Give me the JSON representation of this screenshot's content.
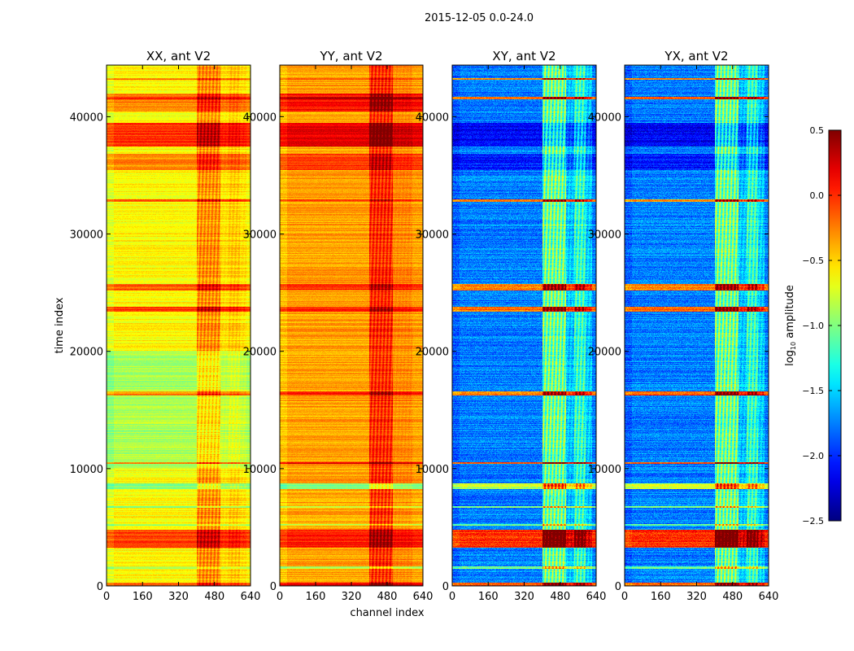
{
  "chart_data": {
    "type": "heatmap",
    "title": "2015-12-05 0.0-24.0",
    "xlabel": "channel index",
    "ylabel": "time index",
    "colormap": "jet",
    "xlim": [
      0,
      640
    ],
    "ylim": [
      0,
      44400
    ],
    "xticks": [
      "0",
      "160",
      "320",
      "480",
      "640"
    ],
    "xtick_values": [
      0,
      160,
      320,
      480,
      640
    ],
    "yticks": [
      "0",
      "10000",
      "20000",
      "30000",
      "40000"
    ],
    "ytick_values": [
      0,
      10000,
      20000,
      30000,
      40000
    ],
    "panels": [
      {
        "title": "XX, ant V2",
        "base": -0.62
      },
      {
        "title": "YY, ant V2",
        "base": -0.35
      },
      {
        "title": "XY, ant V2",
        "base": -1.75
      },
      {
        "title": "YX, ant V2",
        "base": -1.75
      }
    ],
    "channel_bands": [
      {
        "c0": 400,
        "c1": 505,
        "delta": [
          0.45,
          0.5,
          1.0,
          1.0
        ]
      },
      {
        "c0": 505,
        "c1": 540,
        "delta": [
          0.1,
          0.1,
          0.3,
          0.3
        ]
      },
      {
        "c0": 540,
        "c1": 590,
        "delta": [
          0.2,
          0.1,
          0.75,
          0.75
        ]
      },
      {
        "c0": 590,
        "c1": 620,
        "delta": [
          0.1,
          0.0,
          0.35,
          0.35
        ]
      }
    ],
    "time_bands": [
      {
        "t0": 0,
        "t1": 300,
        "delta": [
          0.5,
          0.5,
          1.6,
          1.6
        ]
      },
      {
        "t0": 1500,
        "t1": 1700,
        "delta": [
          -0.3,
          -0.5,
          0.7,
          0.7
        ]
      },
      {
        "t0": 3300,
        "t1": 4800,
        "delta": [
          0.55,
          0.4,
          1.75,
          1.75
        ]
      },
      {
        "t0": 5200,
        "t1": 5300,
        "delta": [
          -0.3,
          -0.4,
          0.7,
          0.7
        ]
      },
      {
        "t0": 6700,
        "t1": 6800,
        "delta": [
          -0.4,
          -0.5,
          0.8,
          0.8
        ]
      },
      {
        "t0": 8300,
        "t1": 8800,
        "delta": [
          -0.4,
          -0.7,
          0.95,
          0.95
        ]
      },
      {
        "t0": 10000,
        "t1": 20000,
        "delta": [
          -0.25,
          0.0,
          0.0,
          0.0
        ]
      },
      {
        "t0": 10450,
        "t1": 10600,
        "delta": [
          0.7,
          0.5,
          1.6,
          1.6
        ]
      },
      {
        "t0": 16300,
        "t1": 16600,
        "delta": [
          0.6,
          0.4,
          1.55,
          1.55
        ]
      },
      {
        "t0": 23400,
        "t1": 23800,
        "delta": [
          0.55,
          0.4,
          1.55,
          1.55
        ]
      },
      {
        "t0": 25200,
        "t1": 25800,
        "delta": [
          0.5,
          0.3,
          1.5,
          1.5
        ]
      },
      {
        "t0": 32800,
        "t1": 33000,
        "delta": [
          0.5,
          0.3,
          1.5,
          1.5
        ]
      },
      {
        "t0": 35500,
        "t1": 36900,
        "delta": [
          0.35,
          0.3,
          -0.3,
          -0.3
        ]
      },
      {
        "t0": 37500,
        "t1": 39500,
        "delta": [
          0.6,
          0.55,
          -0.4,
          -0.4
        ]
      },
      {
        "t0": 40500,
        "t1": 42000,
        "delta": [
          0.35,
          0.45,
          0.0,
          0.0
        ]
      },
      {
        "t0": 41500,
        "t1": 41700,
        "delta": [
          0.3,
          0.2,
          1.6,
          1.6
        ]
      },
      {
        "t0": 43200,
        "t1": 43300,
        "delta": [
          0.4,
          0.3,
          1.5,
          1.5
        ]
      }
    ],
    "colorbar": {
      "label": "log10 amplitude",
      "label_main": "log",
      "label_sub": "10",
      "label_rest": " amplitude",
      "range": [
        -2.5,
        0.5
      ],
      "ticks": [
        "0.5",
        "0.0",
        "−0.5",
        "−1.0",
        "−1.5",
        "−2.0",
        "−2.5"
      ],
      "tick_values": [
        0.5,
        0.0,
        -0.5,
        -1.0,
        -1.5,
        -2.0,
        -2.5
      ]
    }
  }
}
